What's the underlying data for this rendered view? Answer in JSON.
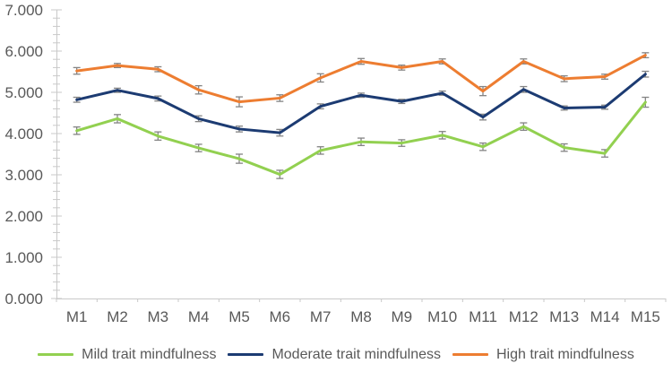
{
  "chart_data": {
    "type": "line",
    "title": "",
    "xlabel": "",
    "ylabel": "",
    "grid": false,
    "legend_position": "bottom",
    "categories": [
      "M1",
      "M2",
      "M3",
      "M4",
      "M5",
      "M6",
      "M7",
      "M8",
      "M9",
      "M10",
      "M11",
      "M12",
      "M13",
      "M14",
      "M15"
    ],
    "series": [
      {
        "name": "Mild trait mindfulness",
        "color": "#92d050",
        "values": [
          4.07,
          4.36,
          3.94,
          3.65,
          3.39,
          3.01,
          3.59,
          3.8,
          3.77,
          3.96,
          3.68,
          4.17,
          3.66,
          3.52,
          4.76
        ],
        "errors": [
          0.09,
          0.1,
          0.1,
          0.09,
          0.11,
          0.1,
          0.09,
          0.09,
          0.08,
          0.09,
          0.09,
          0.09,
          0.09,
          0.09,
          0.12
        ]
      },
      {
        "name": "Moderate trait mindfulness",
        "color": "#1c3b72",
        "values": [
          4.82,
          5.05,
          4.85,
          4.36,
          4.11,
          4.02,
          4.66,
          4.93,
          4.78,
          4.98,
          4.4,
          5.07,
          4.62,
          4.64,
          5.44
        ],
        "errors": [
          0.06,
          0.05,
          0.06,
          0.07,
          0.07,
          0.08,
          0.06,
          0.05,
          0.05,
          0.05,
          0.07,
          0.07,
          0.05,
          0.05,
          0.07
        ]
      },
      {
        "name": "High trait mindfulness",
        "color": "#ed7d31",
        "values": [
          5.52,
          5.65,
          5.56,
          5.06,
          4.77,
          4.86,
          5.35,
          5.75,
          5.6,
          5.75,
          5.03,
          5.75,
          5.33,
          5.38,
          5.9
        ],
        "errors": [
          0.08,
          0.05,
          0.06,
          0.1,
          0.12,
          0.08,
          0.1,
          0.07,
          0.06,
          0.06,
          0.11,
          0.06,
          0.07,
          0.06,
          0.06
        ]
      }
    ],
    "y_axis": {
      "min": 0,
      "max": 7,
      "major_step": 1,
      "minor_step": 0.2,
      "tick_labels": [
        "0.000",
        "1.000",
        "2.000",
        "3.000",
        "4.000",
        "5.000",
        "6.000",
        "7.000"
      ]
    },
    "error_bar_color": "#848484",
    "axis_color": "#c9c9c9",
    "text_color": "#595959"
  }
}
